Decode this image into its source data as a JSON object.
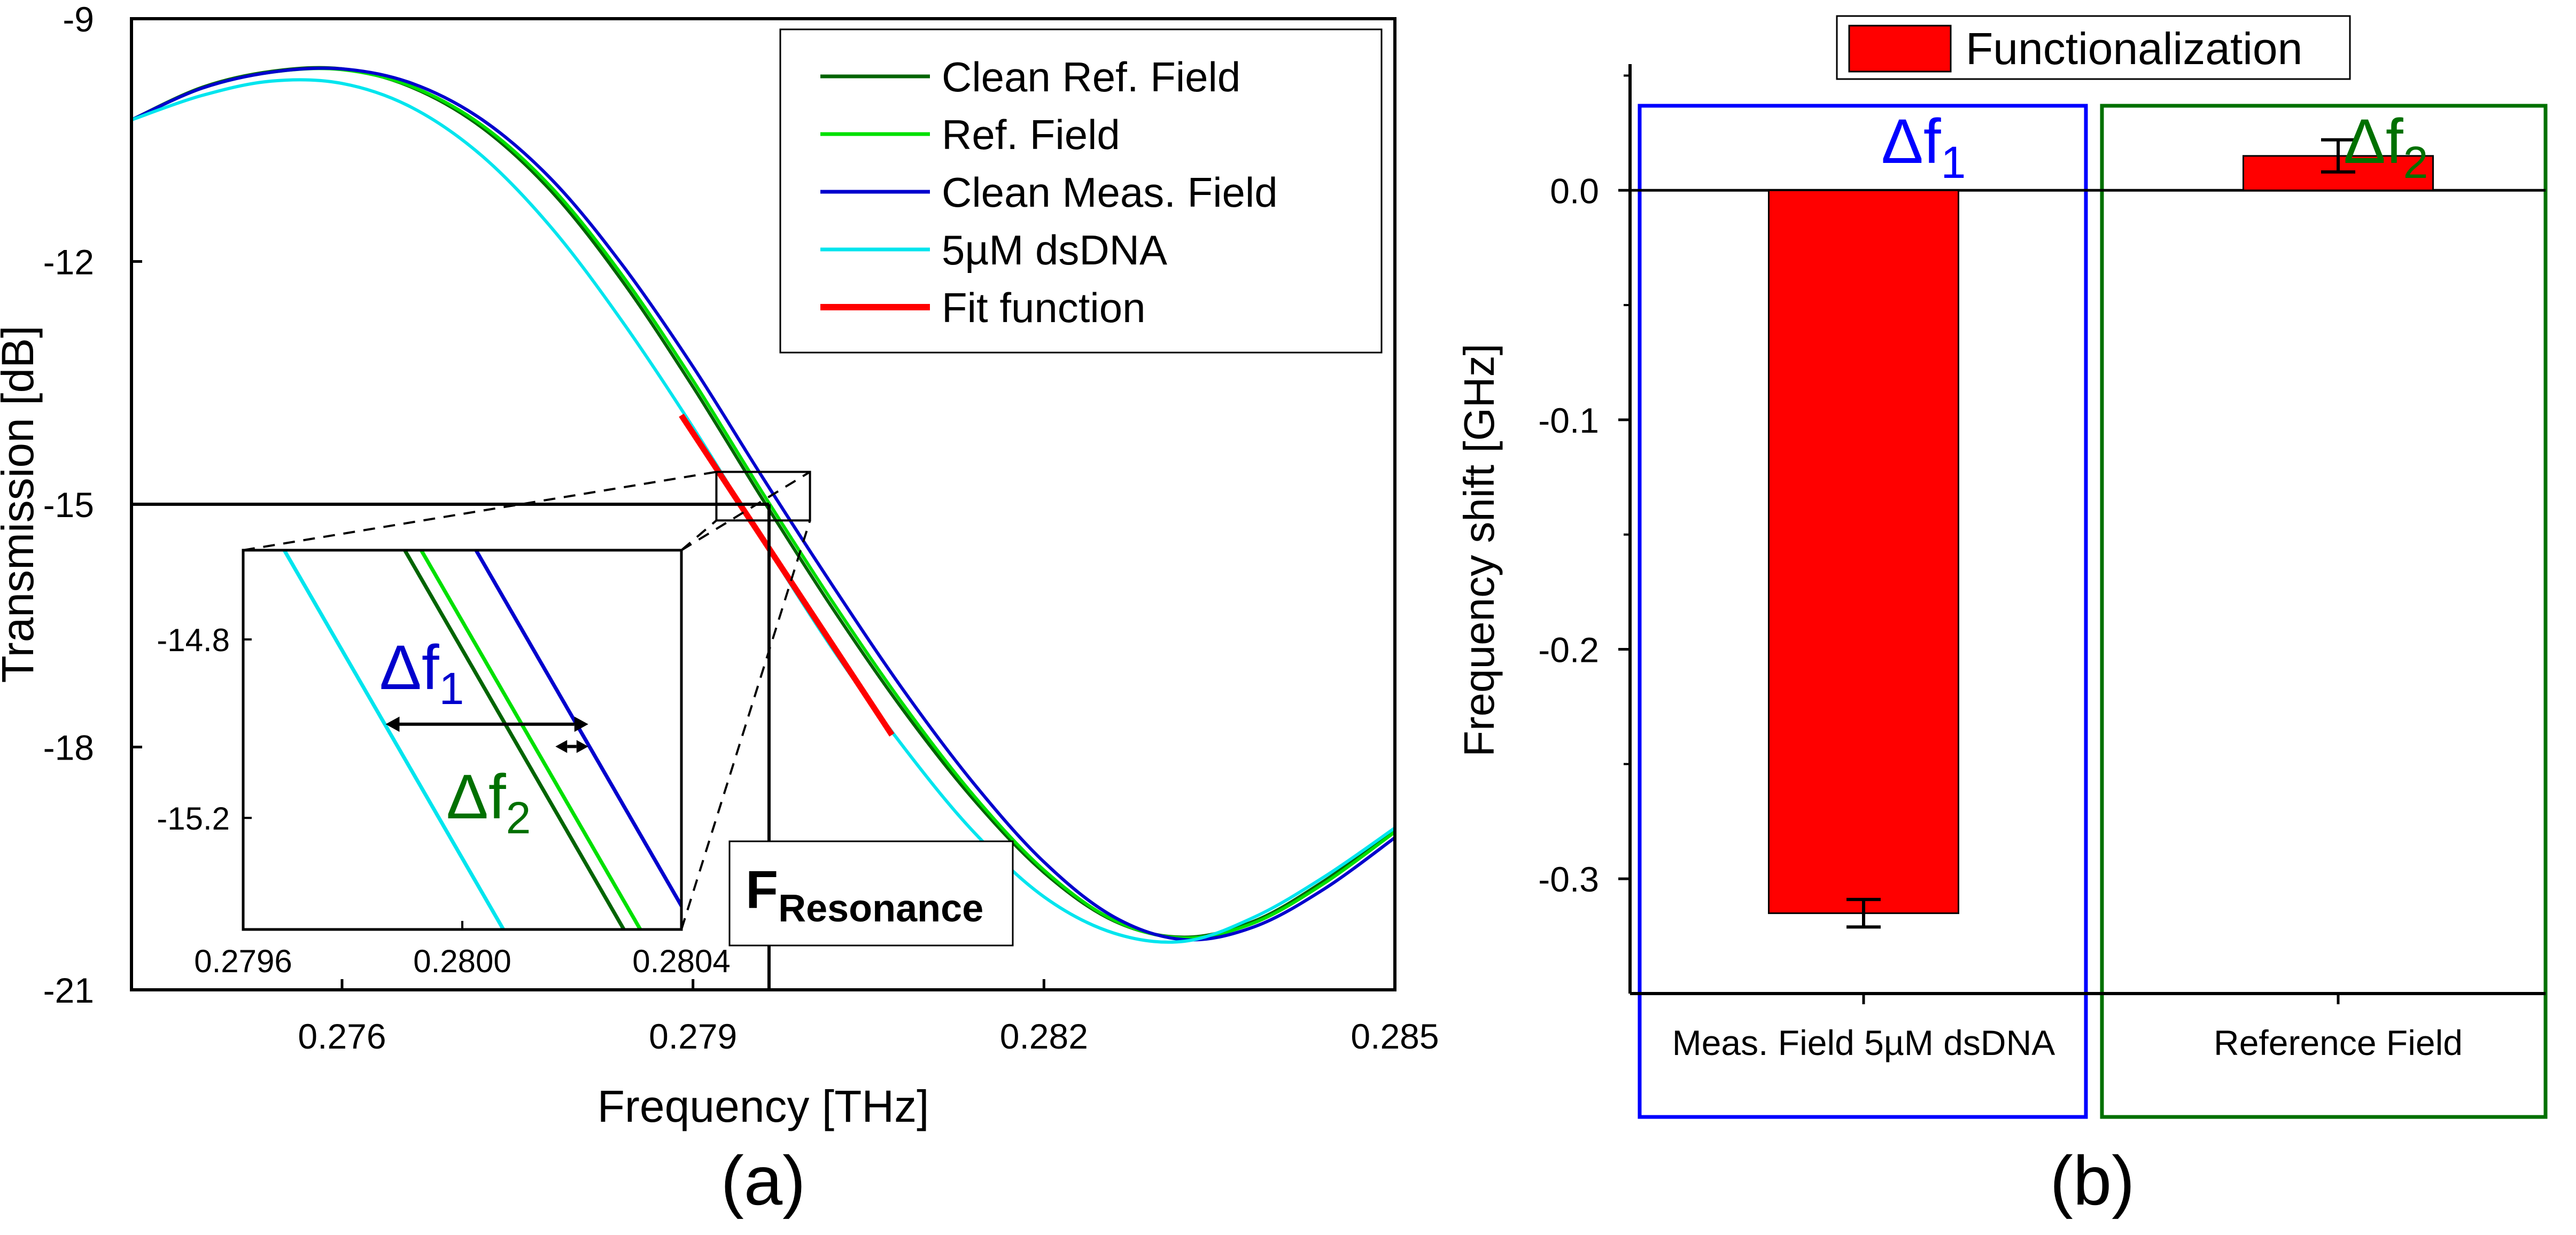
{
  "colors": {
    "clean_ref": "#006400",
    "ref": "#00e000",
    "clean_meas": "#0000cd",
    "meas": "#00e5ee",
    "fit": "#ff0000",
    "bar": "#ff0000",
    "box1": "#0000ff",
    "box2": "#007000"
  },
  "chart_data": [
    {
      "type": "line",
      "panel_label": "(a)",
      "xlabel": "Frequency [THz]",
      "ylabel": "Transmission [dB]",
      "xlim": [
        0.2742,
        0.285
      ],
      "ylim": [
        -21,
        -9
      ],
      "xticks": [
        0.276,
        0.279,
        0.282,
        0.285
      ],
      "xtick_labels": [
        "0.276",
        "0.279",
        "0.282",
        "0.285"
      ],
      "yticks": [
        -9,
        -12,
        -15,
        -18,
        -21
      ],
      "ytick_labels": [
        "-9",
        "-12",
        "-15",
        "-18",
        "-21"
      ],
      "legend": [
        "Clean Ref. Field",
        "Ref. Field",
        "Clean Meas. Field",
        "5µM dsDNA",
        "Fit function"
      ],
      "legend_position": "top-right",
      "series": [
        {
          "name": "Clean Ref. Field",
          "color_key": "clean_ref",
          "x": [
            0.2742,
            0.2748,
            0.2754,
            0.276,
            0.2766,
            0.2772,
            0.2778,
            0.2784,
            0.279,
            0.2796,
            0.2802,
            0.2808,
            0.2814,
            0.282,
            0.2826,
            0.2832,
            0.2838,
            0.2844,
            0.285
          ],
          "y": [
            -10.25,
            -9.85,
            -9.65,
            -9.62,
            -9.85,
            -10.35,
            -11.15,
            -12.25,
            -13.55,
            -14.95,
            -16.3,
            -17.55,
            -18.65,
            -19.55,
            -20.15,
            -20.35,
            -20.15,
            -19.65,
            -19.02
          ]
        },
        {
          "name": "Ref. Field",
          "color_key": "ref",
          "x": [
            0.2742,
            0.2748,
            0.2754,
            0.276,
            0.2766,
            0.2772,
            0.2778,
            0.2784,
            0.279,
            0.2796,
            0.2802,
            0.2808,
            0.2814,
            0.282,
            0.2826,
            0.2832,
            0.2838,
            0.2844,
            0.285
          ],
          "y": [
            -10.25,
            -9.86,
            -9.66,
            -9.63,
            -9.84,
            -10.32,
            -11.1,
            -12.18,
            -13.47,
            -14.87,
            -16.22,
            -17.48,
            -18.6,
            -19.52,
            -20.14,
            -20.36,
            -20.17,
            -19.68,
            -19.05
          ]
        },
        {
          "name": "Clean Meas. Field",
          "color_key": "clean_meas",
          "x": [
            0.2742,
            0.2748,
            0.2754,
            0.276,
            0.2766,
            0.2772,
            0.2778,
            0.2784,
            0.279,
            0.2796,
            0.2802,
            0.2808,
            0.2814,
            0.282,
            0.2826,
            0.2832,
            0.2838,
            0.2844,
            0.285
          ],
          "y": [
            -10.25,
            -9.86,
            -9.66,
            -9.62,
            -9.8,
            -10.25,
            -11.0,
            -12.05,
            -13.3,
            -14.68,
            -16.02,
            -17.3,
            -18.45,
            -19.42,
            -20.1,
            -20.38,
            -20.22,
            -19.75,
            -19.12
          ]
        },
        {
          "name": "5µM dsDNA",
          "color_key": "meas",
          "x": [
            0.2742,
            0.2748,
            0.2754,
            0.276,
            0.2766,
            0.2772,
            0.2778,
            0.2784,
            0.279,
            0.2796,
            0.2802,
            0.2808,
            0.2814,
            0.282,
            0.2826,
            0.2832,
            0.2838,
            0.2844,
            0.285
          ],
          "y": [
            -10.25,
            -9.95,
            -9.77,
            -9.8,
            -10.1,
            -10.7,
            -11.6,
            -12.75,
            -14.05,
            -15.45,
            -16.8,
            -18.0,
            -19.05,
            -19.85,
            -20.3,
            -20.4,
            -20.1,
            -19.6,
            -19.0
          ]
        },
        {
          "name": "Fit function",
          "color_key": "fit",
          "x": [
            0.2789,
            0.2807
          ],
          "y": [
            -13.9,
            -17.85
          ]
        }
      ],
      "annotations": {
        "resonance_label_main": "F",
        "resonance_label_sub": "Resonance",
        "resonance_x": 0.27965,
        "resonance_y": -15.0,
        "zoom_box": {
          "x": [
            0.2792,
            0.28
          ],
          "y": [
            -15.2,
            -14.6
          ]
        }
      },
      "inset": {
        "xlim": [
          0.2796,
          0.2804
        ],
        "ylim": [
          -15.45,
          -14.6
        ],
        "xticks": [
          0.2796,
          0.28,
          0.2804
        ],
        "xtick_labels": [
          "0.2796",
          "0.2800",
          "0.2804"
        ],
        "yticks": [
          -14.8,
          -15.2
        ],
        "ytick_labels": [
          "-14.8",
          "-15.2"
        ],
        "series": [
          {
            "name": "5µM dsDNA",
            "color_key": "meas",
            "x": [
              0.279675,
              0.280075
            ],
            "y": [
              -14.6,
              -15.45
            ]
          },
          {
            "name": "Clean Ref. Field",
            "color_key": "clean_ref",
            "x": [
              0.279895,
              0.280295
            ],
            "y": [
              -14.6,
              -15.45
            ]
          },
          {
            "name": "Ref. Field",
            "color_key": "ref",
            "x": [
              0.279925,
              0.280325
            ],
            "y": [
              -14.6,
              -15.45
            ]
          },
          {
            "name": "Clean Meas. Field",
            "color_key": "clean_meas",
            "x": [
              0.280025,
              0.280425
            ],
            "y": [
              -14.6,
              -15.45
            ]
          }
        ],
        "arrow1": {
          "x1": 0.27986,
          "x2": 0.28023,
          "y": -14.99
        },
        "arrow2": {
          "x1": 0.28017,
          "x2": 0.28023,
          "y": -15.04
        },
        "delta1_label": "Δf",
        "delta1_sub": "1",
        "delta2_label": "Δf",
        "delta2_sub": "2"
      }
    },
    {
      "type": "bar",
      "panel_label": "(b)",
      "ylabel": "Frequency shift [GHz]",
      "categories": [
        "Meas. Field 5µM dsDNA",
        "Reference Field"
      ],
      "values": [
        -0.315,
        0.015
      ],
      "errors": [
        0.006,
        0.007
      ],
      "ylim": [
        -0.35,
        0.055
      ],
      "yticks": [
        0.0,
        -0.1,
        -0.2,
        -0.3
      ],
      "ytick_labels": [
        "0.0",
        "-0.1",
        "-0.2",
        "-0.3"
      ],
      "legend": [
        "Functionalization"
      ],
      "legend_position": "top-center",
      "delta1_label": "Δf",
      "delta1_sub": "1",
      "delta2_label": "Δf",
      "delta2_sub": "2"
    }
  ]
}
